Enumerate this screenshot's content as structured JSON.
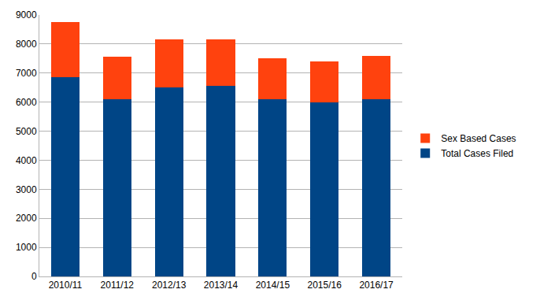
{
  "chart_data": {
    "type": "bar",
    "stacked": true,
    "categories": [
      "2010/11",
      "2011/12",
      "2012/13",
      "2013/14",
      "2014/15",
      "2015/16",
      "2016/17"
    ],
    "series": [
      {
        "name": "Total Cases Filed",
        "color": "#004586",
        "values": [
          6850,
          6100,
          6500,
          6550,
          6100,
          6000,
          6100
        ]
      },
      {
        "name": "Sex Based Cases",
        "color": "#ff420e",
        "values": [
          1900,
          1450,
          1650,
          1600,
          1400,
          1400,
          1500
        ]
      }
    ],
    "ylim": [
      0,
      9000
    ],
    "yticks": [
      0,
      1000,
      2000,
      3000,
      4000,
      5000,
      6000,
      7000,
      8000,
      9000
    ],
    "grid": true,
    "legend": "right"
  }
}
